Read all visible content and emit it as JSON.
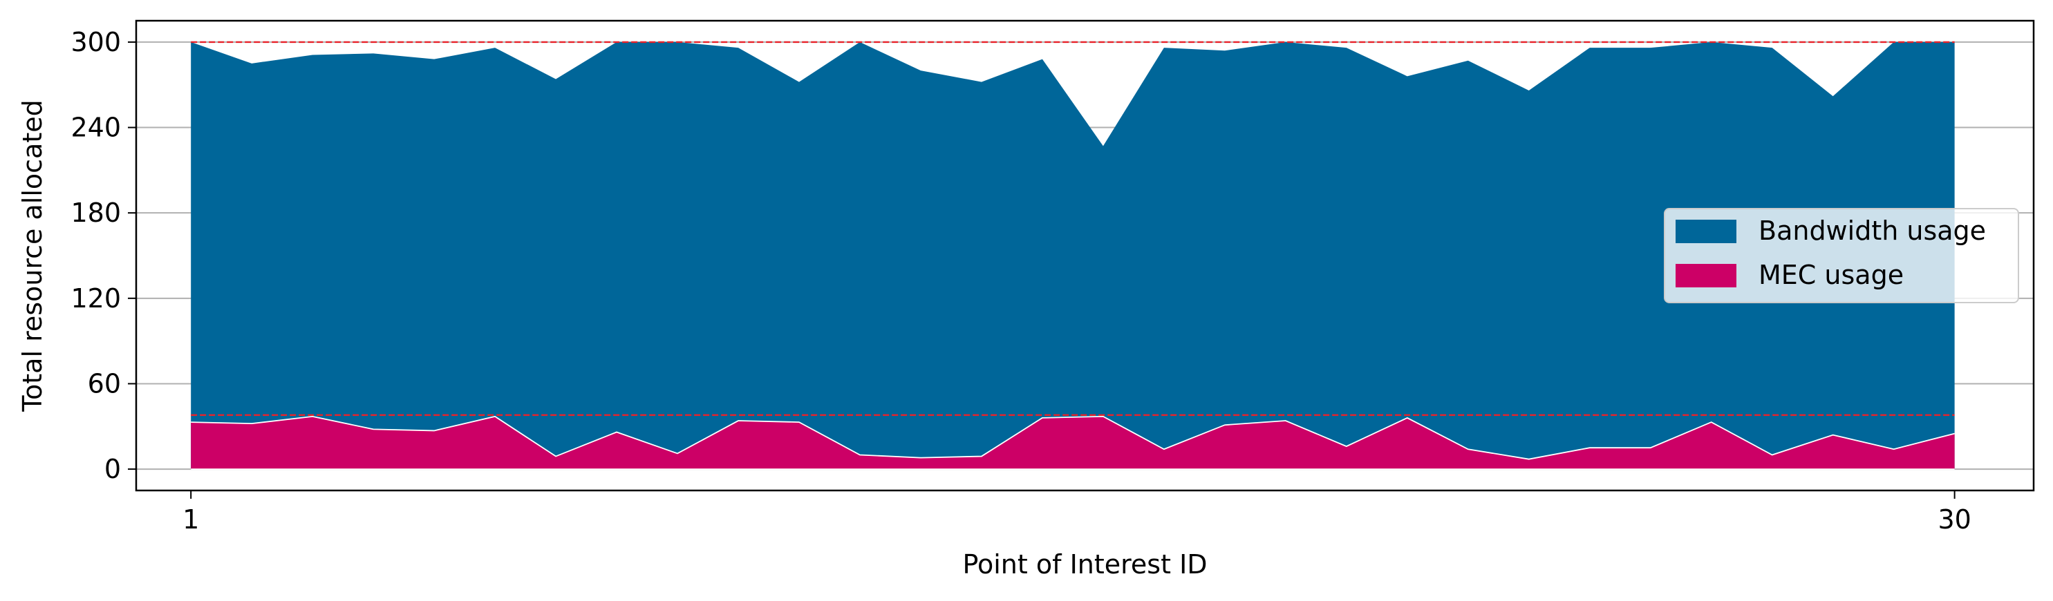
{
  "chart_data": {
    "type": "area",
    "xlabel": "Point of Interest ID",
    "ylabel": "Total resource allocated",
    "xlim": [
      1,
      30
    ],
    "ylim": [
      -15,
      315
    ],
    "x_ticks": [
      1,
      30
    ],
    "y_ticks": [
      0,
      60,
      120,
      180,
      240,
      300
    ],
    "grid": "y-only",
    "legend_position": "center-right",
    "x": [
      1,
      2,
      3,
      4,
      5,
      6,
      7,
      8,
      9,
      10,
      11,
      12,
      13,
      14,
      15,
      16,
      17,
      18,
      19,
      20,
      21,
      22,
      23,
      24,
      25,
      26,
      27,
      28,
      29,
      30
    ],
    "series": [
      {
        "name": "Bandwidth usage",
        "color": "#006699",
        "values": [
          300,
          285,
          291,
          292,
          288,
          296,
          274,
          300,
          300,
          296,
          272,
          300,
          280,
          272,
          288,
          227,
          296,
          294,
          300,
          296,
          276,
          287,
          266,
          296,
          296,
          300,
          296,
          262,
          300,
          300
        ]
      },
      {
        "name": "MEC usage",
        "color": "#cc0066",
        "values": [
          33,
          32,
          37,
          28,
          27,
          37,
          9,
          26,
          11,
          34,
          33,
          10,
          8,
          9,
          36,
          37,
          14,
          31,
          34,
          16,
          36,
          14,
          7,
          15,
          15,
          33,
          10,
          24,
          14,
          25
        ]
      }
    ],
    "reference_lines": [
      {
        "y": 300,
        "color": "#e8232a",
        "style": "dashed"
      },
      {
        "y": 38,
        "color": "#e8232a",
        "style": "dashed"
      }
    ]
  }
}
